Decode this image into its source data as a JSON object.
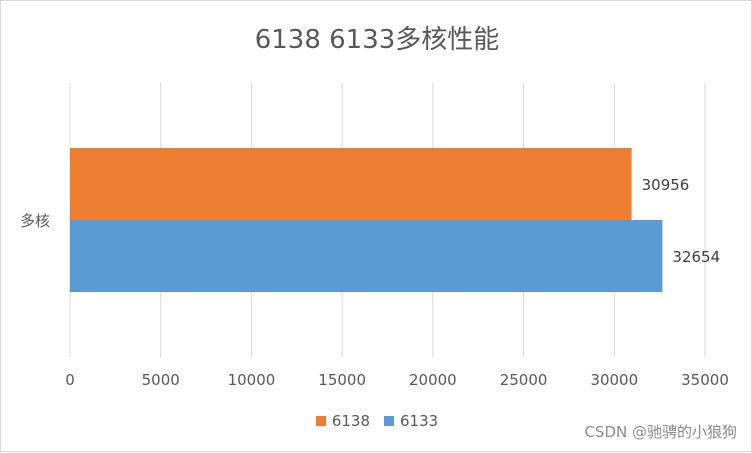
{
  "chart_data": {
    "type": "bar",
    "orientation": "horizontal",
    "title": "6138 6133多核性能",
    "categories": [
      "多核"
    ],
    "series": [
      {
        "name": "6138",
        "values": [
          30956
        ],
        "color": "#ED7D31"
      },
      {
        "name": "6133",
        "values": [
          32654
        ],
        "color": "#5B9BD5"
      }
    ],
    "xlim": [
      0,
      35000
    ],
    "xticks": [
      0,
      5000,
      10000,
      15000,
      20000,
      25000,
      30000,
      35000
    ],
    "grid": true,
    "legend_position": "bottom",
    "data_labels": true
  },
  "watermark": "CSDN @驰骋的小狼狗"
}
